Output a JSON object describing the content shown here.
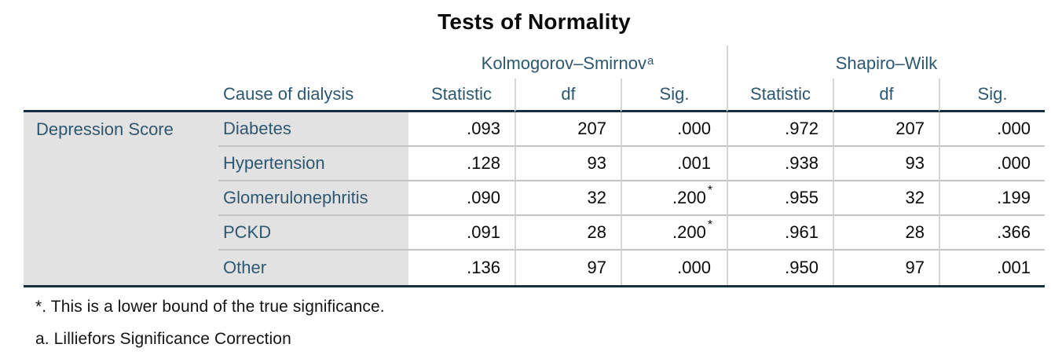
{
  "title": "Tests of Normality",
  "colors": {
    "header_text": "#2d5871",
    "border_dark": "#152f3e",
    "label_background": "#e2e2e2",
    "grid_line": "#c4c4c4"
  },
  "table": {
    "group_headers": {
      "kolmogorov_smirnov": "Kolmogorov–Smirnov",
      "kolmogorov_smirnov_sup": "a",
      "shapiro_wilk": "Shapiro–Wilk"
    },
    "sub_headers": {
      "cause": "Cause of dialysis",
      "statistic": "Statistic",
      "df": "df",
      "sig": "Sig."
    },
    "row_label": "Depression Score",
    "rows": [
      {
        "cause": "Diabetes",
        "ks_statistic": ".093",
        "ks_df": "207",
        "ks_sig": ".000",
        "ks_sig_sup": "",
        "sw_statistic": ".972",
        "sw_df": "207",
        "sw_sig": ".000"
      },
      {
        "cause": "Hypertension",
        "ks_statistic": ".128",
        "ks_df": "93",
        "ks_sig": ".001",
        "ks_sig_sup": "",
        "sw_statistic": ".938",
        "sw_df": "93",
        "sw_sig": ".000"
      },
      {
        "cause": "Glomerulonephritis",
        "ks_statistic": ".090",
        "ks_df": "32",
        "ks_sig": ".200",
        "ks_sig_sup": "*",
        "sw_statistic": ".955",
        "sw_df": "32",
        "sw_sig": ".199"
      },
      {
        "cause": "PCKD",
        "ks_statistic": ".091",
        "ks_df": "28",
        "ks_sig": ".200",
        "ks_sig_sup": "*",
        "sw_statistic": ".961",
        "sw_df": "28",
        "sw_sig": ".366"
      },
      {
        "cause": "Other",
        "ks_statistic": ".136",
        "ks_df": "97",
        "ks_sig": ".000",
        "ks_sig_sup": "",
        "sw_statistic": ".950",
        "sw_df": "97",
        "sw_sig": ".001"
      }
    ]
  },
  "footnotes": {
    "star": "*. This is a lower bound of the true significance.",
    "a": "a. Lilliefors Significance Correction"
  }
}
